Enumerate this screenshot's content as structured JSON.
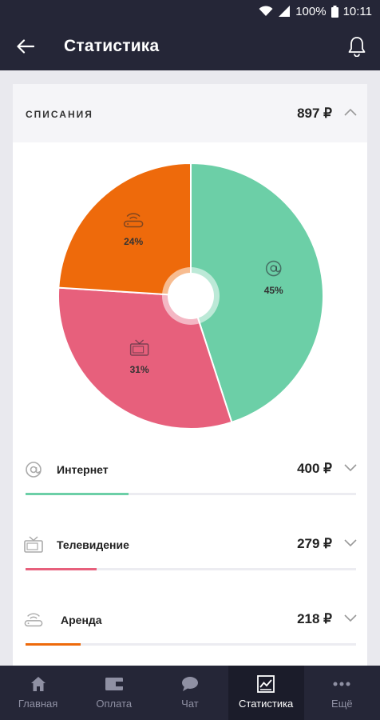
{
  "status_bar": {
    "battery": "100%",
    "time": "10:11"
  },
  "app_bar": {
    "title": "Статистика",
    "back_icon": "arrow-left-icon",
    "bell_icon": "bell-icon"
  },
  "card": {
    "title": "СПИСАНИЯ",
    "total": "897 ₽",
    "expanded": true
  },
  "chart_data": {
    "type": "pie",
    "slices": [
      {
        "name": "Интернет",
        "value": 45,
        "label": "45%",
        "color": "#6ccfa7",
        "icon": "at-sign-icon"
      },
      {
        "name": "Телевидение",
        "value": 31,
        "label": "31%",
        "color": "#e7607c",
        "icon": "tv-icon"
      },
      {
        "name": "Аренда",
        "value": 24,
        "label": "24%",
        "color": "#ee6a0b",
        "icon": "router-icon"
      }
    ]
  },
  "items": [
    {
      "label": "Интернет",
      "amount": "400 ₽",
      "share": 0.45,
      "color": "#6ccfa7",
      "icon": "at-sign-icon"
    },
    {
      "label": "Телевидение",
      "amount": "279 ₽",
      "share": 0.31,
      "color": "#e7607c",
      "icon": "tv-icon"
    },
    {
      "label": "Аренда",
      "amount": "218 ₽",
      "share": 0.24,
      "color": "#ee6a0b",
      "icon": "router-icon"
    }
  ],
  "bottom_nav": [
    {
      "label": "Главная",
      "icon": "home-icon",
      "active": false
    },
    {
      "label": "Оплата",
      "icon": "wallet-icon",
      "active": false
    },
    {
      "label": "Чат",
      "icon": "chat-icon",
      "active": false
    },
    {
      "label": "Статистика",
      "icon": "chart-icon",
      "active": true
    },
    {
      "label": "Ещё",
      "icon": "more-icon",
      "active": false
    }
  ]
}
